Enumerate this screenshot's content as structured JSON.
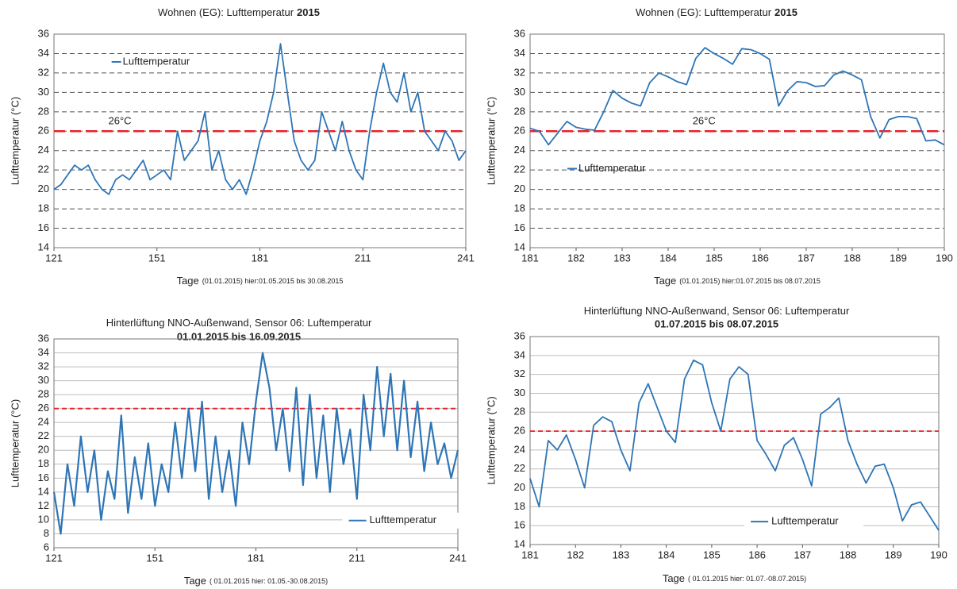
{
  "chart_data": [
    {
      "type": "line",
      "title": "Wohnen (EG): Lufttemperatur",
      "title_bold": "2015",
      "ylabel": "Lufttemperatur (°C)",
      "xlabel": "Tage",
      "xlabel_note": "(01.01.2015) hier:01.05.2015 bis 30.08.2015",
      "x": [
        121,
        123,
        125,
        127,
        129,
        131,
        133,
        135,
        137,
        139,
        141,
        143,
        145,
        147,
        149,
        151,
        153,
        155,
        157,
        159,
        161,
        163,
        165,
        167,
        169,
        171,
        173,
        175,
        177,
        179,
        181,
        183,
        185,
        187,
        189,
        191,
        193,
        195,
        197,
        199,
        201,
        203,
        205,
        207,
        209,
        211,
        213,
        215,
        217,
        219,
        221,
        223,
        225,
        227,
        229,
        231,
        233,
        235,
        237,
        239,
        241
      ],
      "series": [
        {
          "name": "Lufttemperatur",
          "color": "#2e75b6",
          "values": [
            20,
            20.5,
            21.5,
            22.5,
            22,
            22.5,
            21,
            20,
            19.5,
            21,
            21.5,
            21,
            22,
            23,
            21,
            21.5,
            22,
            21,
            26,
            23,
            24,
            25,
            28,
            22,
            24,
            21,
            20,
            21,
            19.5,
            22,
            25,
            27,
            30,
            35,
            30,
            25,
            23,
            22,
            23,
            28,
            26,
            24,
            27,
            24,
            22,
            21,
            26,
            30,
            33,
            30,
            29,
            32,
            28,
            30,
            26,
            25,
            24,
            26,
            25,
            23,
            24
          ]
        }
      ],
      "threshold": {
        "value": 26,
        "label": "26°C",
        "color": "#e8202a"
      },
      "xlim": [
        121,
        241
      ],
      "xticks": [
        121,
        151,
        181,
        211,
        241
      ],
      "ylim": [
        14,
        36
      ],
      "yticks": [
        14,
        16,
        18,
        20,
        22,
        24,
        26,
        28,
        30,
        32,
        34,
        36
      ],
      "grid": "dashed",
      "legend": "upper left"
    },
    {
      "type": "line",
      "title": "Wohnen (EG): Lufttemperatur",
      "title_bold": "2015",
      "ylabel": "Lufttemperatur (°C)",
      "xlabel": "Tage",
      "xlabel_note": "(01.01.2015) hier:01.07.2015 bis 08.07.2015",
      "x": [
        181,
        181.2,
        181.4,
        181.6,
        181.8,
        182,
        182.2,
        182.4,
        182.6,
        182.8,
        183,
        183.2,
        183.4,
        183.6,
        183.8,
        184,
        184.2,
        184.4,
        184.6,
        184.8,
        185,
        185.2,
        185.4,
        185.6,
        185.8,
        186,
        186.2,
        186.4,
        186.6,
        186.8,
        187,
        187.2,
        187.4,
        187.6,
        187.8,
        188,
        188.2,
        188.4,
        188.6,
        188.8,
        189,
        189.2,
        189.4,
        189.6,
        189.8,
        190
      ],
      "series": [
        {
          "name": "Lufttemperatur",
          "color": "#2e75b6",
          "values": [
            26.3,
            26.0,
            24.6,
            25.8,
            27.0,
            26.4,
            26.2,
            26.1,
            28.0,
            30.2,
            29.4,
            28.9,
            28.6,
            31.0,
            32.0,
            31.6,
            31.1,
            30.8,
            33.5,
            34.6,
            34.0,
            33.5,
            32.9,
            34.5,
            34.4,
            34.0,
            33.4,
            28.6,
            30.2,
            31.1,
            31.0,
            30.6,
            30.7,
            31.8,
            32.2,
            31.8,
            31.3,
            27.5,
            25.3,
            27.2,
            27.5,
            27.5,
            27.3,
            25.0,
            25.1,
            24.6
          ]
        }
      ],
      "threshold": {
        "value": 26,
        "label": "26°C",
        "color": "#e8202a"
      },
      "xlim": [
        181,
        190
      ],
      "xticks": [
        181,
        182,
        183,
        184,
        185,
        186,
        187,
        188,
        189,
        190
      ],
      "ylim": [
        14,
        36
      ],
      "yticks": [
        14,
        16,
        18,
        20,
        22,
        24,
        26,
        28,
        30,
        32,
        34,
        36
      ],
      "grid": "dashed",
      "legend": "center left"
    },
    {
      "type": "line",
      "title": "Hinterlüftung NNO-Außenwand, Sensor 06: Luftemperatur",
      "subtitle": "01.01.2015 bis 16.09.2015",
      "ylabel": "Lufttemperatur (°C)",
      "xlabel": "Tage",
      "xlabel_note": "( 01.01.2015 hier: 01.05.-30.08.2015)",
      "x": [
        121,
        123,
        125,
        127,
        129,
        131,
        133,
        135,
        137,
        139,
        141,
        143,
        145,
        147,
        149,
        151,
        153,
        155,
        157,
        159,
        161,
        163,
        165,
        167,
        169,
        171,
        173,
        175,
        177,
        179,
        181,
        183,
        185,
        187,
        189,
        191,
        193,
        195,
        197,
        199,
        201,
        203,
        205,
        207,
        209,
        211,
        213,
        215,
        217,
        219,
        221,
        223,
        225,
        227,
        229,
        231,
        233,
        235,
        237,
        239,
        241
      ],
      "series": [
        {
          "name": "Lufttemperatur",
          "color": "#2e75b6",
          "values": [
            14,
            8,
            18,
            12,
            22,
            14,
            20,
            10,
            17,
            13,
            25,
            11,
            19,
            13,
            21,
            12,
            18,
            14,
            24,
            16,
            26,
            17,
            27,
            13,
            22,
            14,
            20,
            12,
            24,
            18,
            27,
            34,
            29,
            20,
            26,
            17,
            29,
            15,
            28,
            16,
            25,
            14,
            26,
            18,
            23,
            13,
            28,
            20,
            32,
            22,
            31,
            20,
            30,
            19,
            27,
            17,
            24,
            18,
            21,
            16,
            20
          ]
        }
      ],
      "threshold": {
        "value": 26,
        "color": "#e8202a"
      },
      "xlim": [
        121,
        241
      ],
      "xticks": [
        121,
        151,
        181,
        211,
        241
      ],
      "ylim": [
        6,
        36
      ],
      "yticks": [
        6,
        8,
        10,
        12,
        14,
        16,
        18,
        20,
        22,
        24,
        26,
        28,
        30,
        32,
        34,
        36
      ],
      "grid": "solid",
      "legend": "lower right"
    },
    {
      "type": "line",
      "title": "Hinterlüftung NNO-Außenwand, Sensor 06: Luftemperatur",
      "subtitle": "01.07.2015 bis 08.07.2015",
      "ylabel": "Lufttemperatur (°C)",
      "xlabel": "Tage",
      "xlabel_note": "( 01.01.2015 hier: 01.07.-08.07.2015)",
      "x": [
        181,
        181.2,
        181.4,
        181.6,
        181.8,
        182,
        182.2,
        182.4,
        182.6,
        182.8,
        183,
        183.2,
        183.4,
        183.6,
        183.8,
        184,
        184.2,
        184.4,
        184.6,
        184.8,
        185,
        185.2,
        185.4,
        185.6,
        185.8,
        186,
        186.2,
        186.4,
        186.6,
        186.8,
        187,
        187.2,
        187.4,
        187.6,
        187.8,
        188,
        188.2,
        188.4,
        188.6,
        188.8,
        189,
        189.2,
        189.4,
        189.6,
        189.8,
        190
      ],
      "series": [
        {
          "name": "Lufttemperatur",
          "color": "#2e75b6",
          "values": [
            21.0,
            18.0,
            25.0,
            24.0,
            25.6,
            23.0,
            20.0,
            26.6,
            27.5,
            27.0,
            24.0,
            21.8,
            29.0,
            31.0,
            28.5,
            26.0,
            24.8,
            31.5,
            33.5,
            33.0,
            29.0,
            26.0,
            31.5,
            32.8,
            32.0,
            25.0,
            23.5,
            21.8,
            24.5,
            25.3,
            23.0,
            20.2,
            27.8,
            28.5,
            29.5,
            25.0,
            22.5,
            20.5,
            22.3,
            22.5,
            20.0,
            16.5,
            18.2,
            18.5,
            17.0,
            15.5
          ]
        }
      ],
      "threshold": {
        "value": 26,
        "color": "#e8202a"
      },
      "xlim": [
        181,
        190
      ],
      "xticks": [
        181,
        182,
        183,
        184,
        185,
        186,
        187,
        188,
        189,
        190
      ],
      "ylim": [
        14,
        36
      ],
      "yticks": [
        14,
        16,
        18,
        20,
        22,
        24,
        26,
        28,
        30,
        32,
        34,
        36
      ],
      "grid": "solid",
      "legend": "lower center"
    }
  ]
}
